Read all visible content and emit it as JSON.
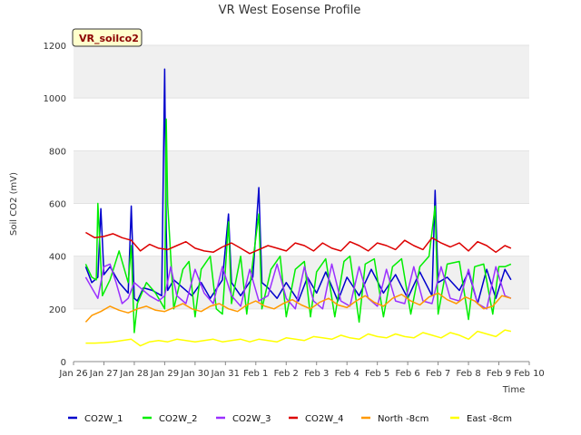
{
  "chart_data": {
    "type": "line",
    "title": "VR West Eosense Profile",
    "site_label": "VR_soilco2",
    "xlabel": "Time",
    "ylabel": "Soil CO2 (mV)",
    "ylim": [
      0,
      1200
    ],
    "yticks": [
      0,
      200,
      400,
      600,
      800,
      1000,
      1200
    ],
    "xlim": [
      0,
      15
    ],
    "xticks": [
      0,
      1,
      2,
      3,
      4,
      5,
      6,
      7,
      8,
      9,
      10,
      11,
      12,
      13,
      14,
      15
    ],
    "xtick_labels": [
      "Jan 26",
      "Jan 27",
      "Jan 28",
      "Jan 29",
      "Jan 30",
      "Jan 31",
      "Feb 1",
      "Feb 2",
      "Feb 3",
      "Feb 4",
      "Feb 5",
      "Feb 6",
      "Feb 7",
      "Feb 8",
      "Feb 9",
      "Feb 10"
    ],
    "x_units": "days since Jan 26",
    "grid": "horizontal bands",
    "legend_position": "bottom",
    "series": [
      {
        "name": "CO2W_1",
        "color": "#0000cc",
        "x": [
          0.4,
          0.6,
          0.8,
          0.9,
          1.0,
          1.2,
          1.5,
          1.8,
          1.9,
          2.0,
          2.1,
          2.3,
          2.6,
          2.9,
          3.0,
          3.05,
          3.1,
          3.3,
          3.6,
          3.9,
          4.2,
          4.5,
          4.9,
          5.1,
          5.2,
          5.5,
          5.9,
          6.1,
          6.2,
          6.4,
          6.7,
          7.0,
          7.4,
          7.7,
          8.0,
          8.3,
          8.7,
          9.0,
          9.4,
          9.8,
          10.2,
          10.6,
          11.0,
          11.4,
          11.8,
          11.9,
          12.0,
          12.3,
          12.7,
          13.0,
          13.3,
          13.6,
          13.9,
          14.2,
          14.4
        ],
        "y": [
          360,
          300,
          320,
          580,
          330,
          360,
          300,
          260,
          590,
          240,
          230,
          280,
          270,
          250,
          1110,
          500,
          270,
          310,
          280,
          250,
          300,
          240,
          310,
          560,
          300,
          250,
          320,
          660,
          300,
          280,
          240,
          300,
          230,
          320,
          260,
          340,
          230,
          320,
          250,
          350,
          260,
          330,
          240,
          340,
          250,
          650,
          300,
          320,
          270,
          340,
          220,
          350,
          240,
          350,
          310
        ]
      },
      {
        "name": "CO2W_2",
        "color": "#00ee00",
        "x": [
          0.4,
          0.6,
          0.75,
          0.8,
          0.95,
          1.2,
          1.5,
          1.8,
          1.9,
          2.0,
          2.1,
          2.4,
          2.7,
          3.0,
          3.05,
          3.1,
          3.3,
          3.6,
          3.8,
          4.0,
          4.2,
          4.5,
          4.7,
          4.9,
          5.1,
          5.2,
          5.5,
          5.7,
          5.9,
          6.1,
          6.2,
          6.5,
          6.8,
          7.0,
          7.3,
          7.6,
          7.8,
          8.0,
          8.3,
          8.6,
          8.9,
          9.1,
          9.4,
          9.6,
          9.9,
          10.2,
          10.5,
          10.8,
          11.1,
          11.4,
          11.7,
          11.9,
          12.0,
          12.3,
          12.7,
          13.0,
          13.2,
          13.5,
          13.8,
          14.0,
          14.2,
          14.4
        ],
        "y": [
          370,
          320,
          310,
          600,
          250,
          310,
          420,
          300,
          440,
          110,
          220,
          300,
          260,
          200,
          920,
          600,
          200,
          350,
          380,
          170,
          350,
          400,
          200,
          180,
          530,
          220,
          400,
          180,
          380,
          560,
          200,
          350,
          400,
          170,
          350,
          380,
          170,
          340,
          390,
          170,
          380,
          400,
          150,
          370,
          390,
          170,
          360,
          390,
          180,
          360,
          400,
          590,
          180,
          370,
          380,
          160,
          360,
          370,
          180,
          360,
          360,
          370
        ]
      },
      {
        "name": "CO2W_3",
        "color": "#9b30ff",
        "x": [
          0.4,
          0.6,
          0.8,
          1.0,
          1.2,
          1.4,
          1.6,
          1.8,
          2.0,
          2.2,
          2.5,
          2.8,
          3.0,
          3.2,
          3.4,
          3.7,
          4.0,
          4.3,
          4.6,
          4.9,
          5.2,
          5.5,
          5.8,
          6.1,
          6.4,
          6.7,
          7.0,
          7.3,
          7.6,
          7.9,
          8.2,
          8.5,
          8.8,
          9.1,
          9.4,
          9.7,
          10.0,
          10.3,
          10.6,
          10.9,
          11.2,
          11.5,
          11.8,
          12.1,
          12.4,
          12.7,
          13.0,
          13.3,
          13.6,
          13.9,
          14.2,
          14.4
        ],
        "y": [
          320,
          280,
          240,
          360,
          370,
          300,
          220,
          240,
          300,
          280,
          250,
          230,
          250,
          360,
          250,
          220,
          350,
          260,
          220,
          360,
          250,
          210,
          350,
          230,
          250,
          370,
          240,
          200,
          360,
          230,
          200,
          370,
          230,
          210,
          360,
          240,
          210,
          350,
          230,
          220,
          360,
          230,
          220,
          360,
          240,
          230,
          350,
          220,
          200,
          360,
          250,
          240
        ]
      },
      {
        "name": "CO2W_4",
        "color": "#dd0000",
        "x": [
          0.4,
          0.7,
          1.0,
          1.3,
          1.6,
          1.9,
          2.2,
          2.5,
          2.8,
          3.1,
          3.4,
          3.7,
          4.0,
          4.3,
          4.6,
          4.9,
          5.2,
          5.5,
          5.8,
          6.1,
          6.4,
          6.7,
          7.0,
          7.3,
          7.6,
          7.9,
          8.2,
          8.5,
          8.8,
          9.1,
          9.4,
          9.7,
          10.0,
          10.3,
          10.6,
          10.9,
          11.2,
          11.5,
          11.8,
          12.1,
          12.4,
          12.7,
          13.0,
          13.3,
          13.6,
          13.9,
          14.2,
          14.4
        ],
        "y": [
          490,
          470,
          475,
          485,
          470,
          460,
          420,
          445,
          430,
          425,
          440,
          455,
          430,
          420,
          415,
          435,
          450,
          430,
          410,
          425,
          440,
          430,
          420,
          450,
          440,
          420,
          450,
          430,
          420,
          455,
          440,
          420,
          450,
          440,
          425,
          460,
          440,
          425,
          470,
          450,
          435,
          450,
          420,
          455,
          440,
          415,
          440,
          430
        ]
      },
      {
        "name": "North -8cm",
        "color": "#ff9900",
        "x": [
          0.4,
          0.6,
          0.9,
          1.2,
          1.5,
          1.8,
          2.1,
          2.4,
          2.7,
          3.0,
          3.3,
          3.6,
          3.9,
          4.2,
          4.5,
          4.8,
          5.1,
          5.4,
          5.7,
          6.0,
          6.3,
          6.6,
          6.9,
          7.2,
          7.5,
          7.8,
          8.1,
          8.4,
          8.7,
          9.0,
          9.3,
          9.6,
          9.9,
          10.2,
          10.5,
          10.8,
          11.1,
          11.4,
          11.7,
          12.0,
          12.3,
          12.6,
          12.9,
          13.2,
          13.5,
          13.8,
          14.1,
          14.4
        ],
        "y": [
          150,
          175,
          190,
          210,
          195,
          185,
          200,
          210,
          195,
          190,
          205,
          220,
          200,
          190,
          210,
          220,
          200,
          190,
          215,
          230,
          210,
          200,
          220,
          235,
          215,
          200,
          225,
          240,
          215,
          205,
          230,
          250,
          225,
          210,
          240,
          255,
          230,
          215,
          245,
          260,
          235,
          220,
          245,
          230,
          200,
          210,
          250,
          240
        ]
      },
      {
        "name": "East -8cm",
        "color": "#ffff00",
        "x": [
          0.4,
          0.7,
          1.0,
          1.3,
          1.6,
          1.9,
          2.2,
          2.5,
          2.8,
          3.1,
          3.4,
          3.7,
          4.0,
          4.3,
          4.6,
          4.9,
          5.2,
          5.5,
          5.8,
          6.1,
          6.4,
          6.7,
          7.0,
          7.3,
          7.6,
          7.9,
          8.2,
          8.5,
          8.8,
          9.1,
          9.4,
          9.7,
          10.0,
          10.3,
          10.6,
          10.9,
          11.2,
          11.5,
          11.8,
          12.1,
          12.4,
          12.7,
          13.0,
          13.3,
          13.6,
          13.9,
          14.2,
          14.4
        ],
        "y": [
          70,
          70,
          72,
          75,
          80,
          85,
          60,
          75,
          80,
          75,
          85,
          80,
          75,
          80,
          85,
          75,
          80,
          85,
          75,
          85,
          80,
          75,
          90,
          85,
          80,
          95,
          90,
          85,
          100,
          90,
          85,
          105,
          95,
          90,
          105,
          95,
          90,
          110,
          100,
          90,
          110,
          100,
          85,
          115,
          105,
          95,
          120,
          115
        ]
      }
    ]
  }
}
